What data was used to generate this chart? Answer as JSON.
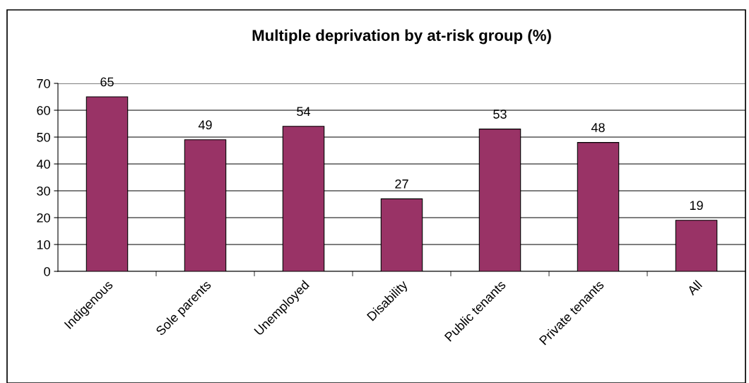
{
  "chart_data": {
    "type": "bar",
    "title": "Multiple deprivation by at-risk group (%)",
    "categories": [
      "Indigenous",
      "Sole parents",
      "Unemployed",
      "Disability",
      "Public tenants",
      "Private tenants",
      "All"
    ],
    "values": [
      65,
      49,
      54,
      27,
      53,
      48,
      19
    ],
    "color": "#993366",
    "ylim": [
      0,
      70
    ],
    "yticks": [
      0,
      10,
      20,
      30,
      40,
      50,
      60,
      70
    ],
    "grid": "y",
    "data_labels": true,
    "legend": false
  }
}
